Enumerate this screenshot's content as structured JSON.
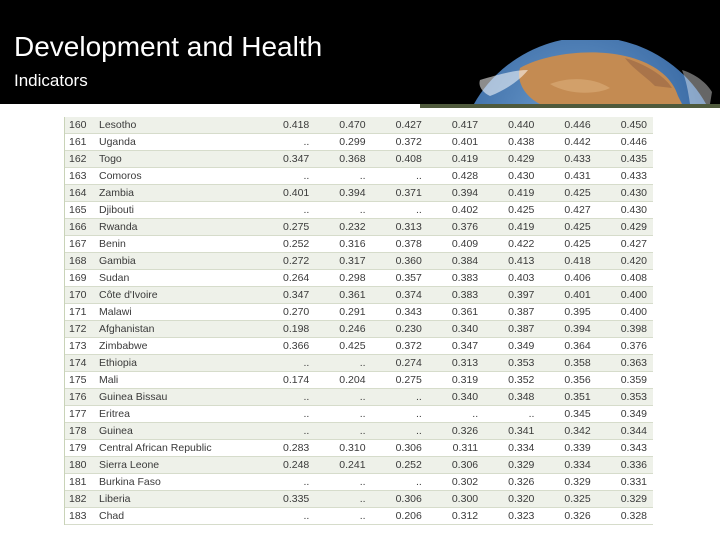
{
  "slide": {
    "title": "Development and Health",
    "subtitle": "Indicators"
  },
  "table": {
    "rows": [
      {
        "rank": "160",
        "country": "Lesotho",
        "values": [
          "0.418",
          "0.470",
          "0.427",
          "0.417",
          "0.440",
          "0.446",
          "0.450"
        ]
      },
      {
        "rank": "161",
        "country": "Uganda",
        "values": [
          "..",
          "0.299",
          "0.372",
          "0.401",
          "0.438",
          "0.442",
          "0.446"
        ]
      },
      {
        "rank": "162",
        "country": "Togo",
        "values": [
          "0.347",
          "0.368",
          "0.408",
          "0.419",
          "0.429",
          "0.433",
          "0.435"
        ]
      },
      {
        "rank": "163",
        "country": "Comoros",
        "values": [
          "..",
          "..",
          "..",
          "0.428",
          "0.430",
          "0.431",
          "0.433"
        ]
      },
      {
        "rank": "164",
        "country": "Zambia",
        "values": [
          "0.401",
          "0.394",
          "0.371",
          "0.394",
          "0.419",
          "0.425",
          "0.430"
        ]
      },
      {
        "rank": "165",
        "country": "Djibouti",
        "values": [
          "..",
          "..",
          "..",
          "0.402",
          "0.425",
          "0.427",
          "0.430"
        ]
      },
      {
        "rank": "166",
        "country": "Rwanda",
        "values": [
          "0.275",
          "0.232",
          "0.313",
          "0.376",
          "0.419",
          "0.425",
          "0.429"
        ]
      },
      {
        "rank": "167",
        "country": "Benin",
        "values": [
          "0.252",
          "0.316",
          "0.378",
          "0.409",
          "0.422",
          "0.425",
          "0.427"
        ]
      },
      {
        "rank": "168",
        "country": "Gambia",
        "values": [
          "0.272",
          "0.317",
          "0.360",
          "0.384",
          "0.413",
          "0.418",
          "0.420"
        ]
      },
      {
        "rank": "169",
        "country": "Sudan",
        "values": [
          "0.264",
          "0.298",
          "0.357",
          "0.383",
          "0.403",
          "0.406",
          "0.408"
        ]
      },
      {
        "rank": "170",
        "country": "Côte d'Ivoire",
        "values": [
          "0.347",
          "0.361",
          "0.374",
          "0.383",
          "0.397",
          "0.401",
          "0.400"
        ]
      },
      {
        "rank": "171",
        "country": "Malawi",
        "values": [
          "0.270",
          "0.291",
          "0.343",
          "0.361",
          "0.387",
          "0.395",
          "0.400"
        ]
      },
      {
        "rank": "172",
        "country": "Afghanistan",
        "values": [
          "0.198",
          "0.246",
          "0.230",
          "0.340",
          "0.387",
          "0.394",
          "0.398"
        ]
      },
      {
        "rank": "173",
        "country": "Zimbabwe",
        "values": [
          "0.366",
          "0.425",
          "0.372",
          "0.347",
          "0.349",
          "0.364",
          "0.376"
        ]
      },
      {
        "rank": "174",
        "country": "Ethiopia",
        "values": [
          "..",
          "..",
          "0.274",
          "0.313",
          "0.353",
          "0.358",
          "0.363"
        ]
      },
      {
        "rank": "175",
        "country": "Mali",
        "values": [
          "0.174",
          "0.204",
          "0.275",
          "0.319",
          "0.352",
          "0.356",
          "0.359"
        ]
      },
      {
        "rank": "176",
        "country": "Guinea Bissau",
        "values": [
          "..",
          "..",
          "..",
          "0.340",
          "0.348",
          "0.351",
          "0.353"
        ]
      },
      {
        "rank": "177",
        "country": "Eritrea",
        "values": [
          "..",
          "..",
          "..",
          "..",
          "..",
          "0.345",
          "0.349"
        ]
      },
      {
        "rank": "178",
        "country": "Guinea",
        "values": [
          "..",
          "..",
          "..",
          "0.326",
          "0.341",
          "0.342",
          "0.344"
        ]
      },
      {
        "rank": "179",
        "country": "Central African Republic",
        "values": [
          "0.283",
          "0.310",
          "0.306",
          "0.311",
          "0.334",
          "0.339",
          "0.343"
        ]
      },
      {
        "rank": "180",
        "country": "Sierra Leone",
        "values": [
          "0.248",
          "0.241",
          "0.252",
          "0.306",
          "0.329",
          "0.334",
          "0.336"
        ]
      },
      {
        "rank": "181",
        "country": "Burkina Faso",
        "values": [
          "..",
          "..",
          "..",
          "0.302",
          "0.326",
          "0.329",
          "0.331"
        ]
      },
      {
        "rank": "182",
        "country": "Liberia",
        "values": [
          "0.335",
          "..",
          "0.306",
          "0.300",
          "0.320",
          "0.325",
          "0.329"
        ]
      },
      {
        "rank": "183",
        "country": "Chad",
        "values": [
          "..",
          "..",
          "0.206",
          "0.312",
          "0.323",
          "0.326",
          "0.328"
        ]
      }
    ]
  }
}
